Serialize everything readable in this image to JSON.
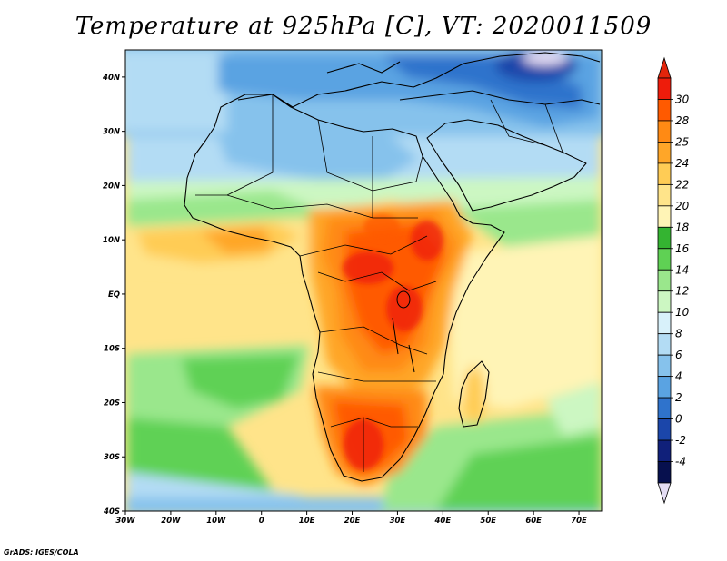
{
  "title": "Temperature at 925hPa [C], VT: 2020011509",
  "credit": "GrADS: IGES/COLA",
  "map": {
    "variable": "Temperature at 925hPa",
    "units": "C",
    "valid_time": "2020011509",
    "lat_range": [
      -40,
      45
    ],
    "lon_range": [
      -30,
      75
    ],
    "lat_ticks": [
      "40N",
      "30N",
      "20N",
      "10N",
      "EQ",
      "10S",
      "20S",
      "30S",
      "40S"
    ],
    "lon_ticks": [
      "30W",
      "20W",
      "10W",
      "0",
      "10E",
      "20E",
      "30E",
      "40E",
      "50E",
      "60E",
      "70E"
    ]
  },
  "colorbar": {
    "labels": [
      "30",
      "28",
      "25",
      "24",
      "22",
      "20",
      "18",
      "16",
      "14",
      "12",
      "10",
      "8",
      "6",
      "4",
      "2",
      "0",
      "-2",
      "-4"
    ],
    "colors": [
      "#ee1c0b",
      "#ff5a00",
      "#ff8a14",
      "#ffa628",
      "#ffcc55",
      "#ffe48a",
      "#fff4b6",
      "#34b431",
      "#5fd154",
      "#9ae78c",
      "#ccf7c2",
      "#d8f1fa",
      "#b3dcf4",
      "#86c2ec",
      "#5aa3e2",
      "#2f73cc",
      "#1b46aa",
      "#10207a",
      "#07104e"
    ],
    "top_cap_color": "#e3250b",
    "bottom_cap_color": "#e4ddf4"
  }
}
